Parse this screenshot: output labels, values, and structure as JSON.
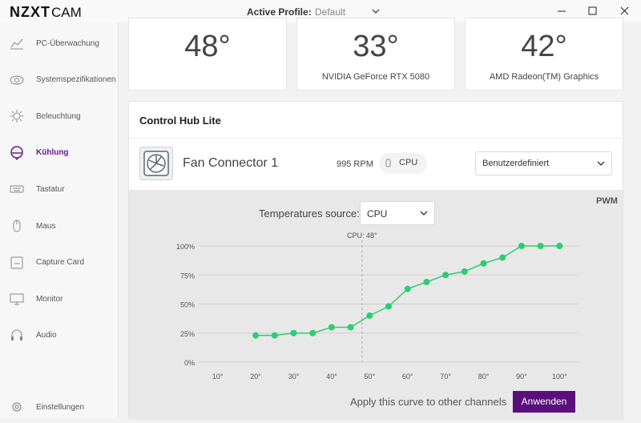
{
  "titlebar": {
    "logo": "NZXT",
    "logo_suffix": "CAM",
    "profile_label": "Active Profile:",
    "profile_value": "Default"
  },
  "sidebar": {
    "items": [
      {
        "label": "PC-Überwachung"
      },
      {
        "label": "Systemspezifikationen"
      },
      {
        "label": "Beleuchtung"
      },
      {
        "label": "Kühlung",
        "active": true
      },
      {
        "label": "Tastatur"
      },
      {
        "label": "Maus"
      },
      {
        "label": "Capture Card"
      },
      {
        "label": "Monitor"
      },
      {
        "label": "Audio"
      }
    ],
    "settings": "Einstellungen"
  },
  "temperature_cards": [
    {
      "value": "48°"
    },
    {
      "value": "33°",
      "label": "NVIDIA GeForce RTX 5080"
    },
    {
      "value": "42°",
      "label": "AMD Radeon(TM) Graphics"
    }
  ],
  "control_hub": {
    "title": "Control Hub Lite",
    "fan": {
      "name": "Fan Connector 1",
      "speed": "995 RPM",
      "source_chip": "CPU",
      "mode": "Benutzerdefiniert"
    },
    "pwm": "PWM",
    "source_label": "Temperatures source:",
    "source_value": "CPU",
    "apply_text": "Apply this curve to other channels",
    "apply_button": "Anwenden"
  },
  "chart_data": {
    "type": "line",
    "x": [
      20,
      25,
      30,
      35,
      40,
      45,
      50,
      55,
      60,
      65,
      70,
      75,
      80,
      85,
      90,
      95,
      100
    ],
    "series": [
      {
        "color": "#2ecc71",
        "values": [
          23,
          23,
          25,
          25,
          30,
          30,
          40,
          48,
          63,
          69,
          75,
          78,
          85,
          90,
          100,
          100,
          100
        ]
      }
    ],
    "xlim": [
      5,
      105
    ],
    "ylim": [
      0,
      100
    ],
    "xticks": [
      {
        "value": 10,
        "label": "10°"
      },
      {
        "value": 20,
        "label": "20°"
      },
      {
        "value": 30,
        "label": "30°"
      },
      {
        "value": 40,
        "label": "40°"
      },
      {
        "value": 50,
        "label": "50°"
      },
      {
        "value": 60,
        "label": "60°"
      },
      {
        "value": 70,
        "label": "70°"
      },
      {
        "value": 80,
        "label": "80°"
      },
      {
        "value": 90,
        "label": "90°"
      },
      {
        "value": 100,
        "label": "100°"
      }
    ],
    "yticks": [
      {
        "value": 0,
        "label": "0%"
      },
      {
        "value": 25,
        "label": "25%"
      },
      {
        "value": 50,
        "label": "50%"
      },
      {
        "value": 75,
        "label": "75%"
      },
      {
        "value": 100,
        "label": "100%"
      }
    ],
    "grid": true,
    "annotation": {
      "label": "CPU: 48°",
      "x": 48
    }
  }
}
